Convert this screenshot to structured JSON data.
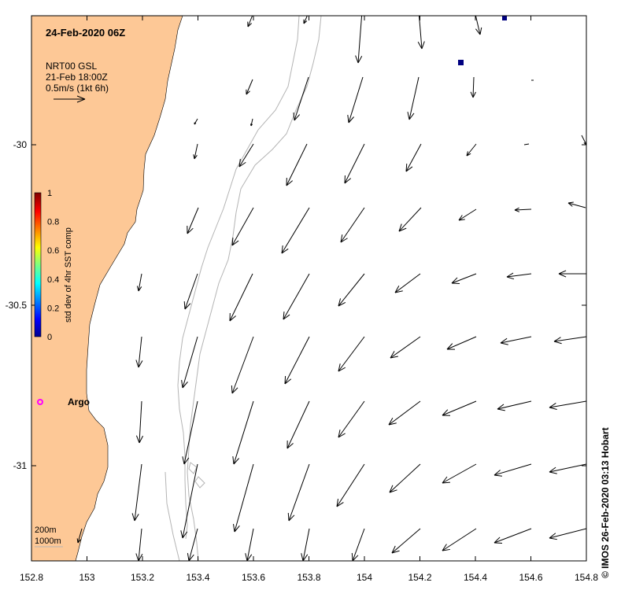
{
  "map": {
    "title": "24-Feb-2020 06Z",
    "product": {
      "line1": "NRT00 GSL",
      "line2": "21-Feb 18:00Z",
      "line3": "0.5m/s (1kt 6h)"
    },
    "lon_ticks": [
      "152.8",
      "153",
      "153.2",
      "153.4",
      "153.6",
      "153.8",
      "154",
      "154.2",
      "154.4",
      "154.6",
      "154.8"
    ],
    "lat_ticks": [
      "-30",
      "-30.5",
      "-31"
    ],
    "colorbar": {
      "label": "std dev of 4hr SST comp",
      "ticks": [
        "1",
        "0.8",
        "0.6",
        "0.4",
        "0.2",
        "0"
      ]
    },
    "argo_label": "Argo",
    "depth_legend": [
      "200m",
      "1000m"
    ],
    "credit": "© IMOS 26-Feb-2020 03:13 Hobart",
    "colors": {
      "land": "#fdc896",
      "contour": "#b4b4b4",
      "argo": "#ff00ff",
      "sst_pixel": "#000080",
      "arrow": "#000000"
    }
  }
}
